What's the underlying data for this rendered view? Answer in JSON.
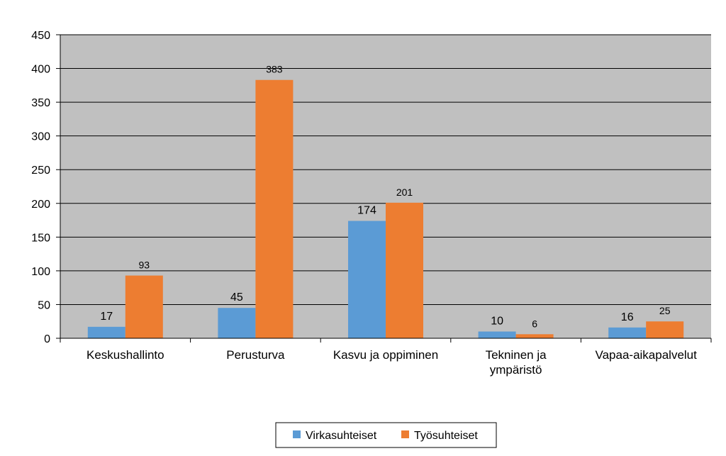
{
  "chart_data": {
    "type": "bar",
    "title": "",
    "xlabel": "",
    "ylabel": "",
    "ylim": [
      0,
      450
    ],
    "yticks": [
      0,
      50,
      100,
      150,
      200,
      250,
      300,
      350,
      400,
      450
    ],
    "grid": true,
    "legend_position": "bottom",
    "plot_background": "#c0c0c0",
    "categories": [
      [
        "Keskushallinto"
      ],
      [
        "Perusturva"
      ],
      [
        "Kasvu ja oppiminen"
      ],
      [
        "Tekninen ja",
        "ympäristö"
      ],
      [
        "Vapaa-aikapalvelut"
      ]
    ],
    "series": [
      {
        "name": "Virkasuhteiset",
        "color": "#5b9bd5",
        "values": [
          17,
          45,
          174,
          10,
          16
        ]
      },
      {
        "name": "Työsuhteiset",
        "color": "#ed7d31",
        "values": [
          93,
          383,
          201,
          6,
          25
        ]
      }
    ]
  }
}
